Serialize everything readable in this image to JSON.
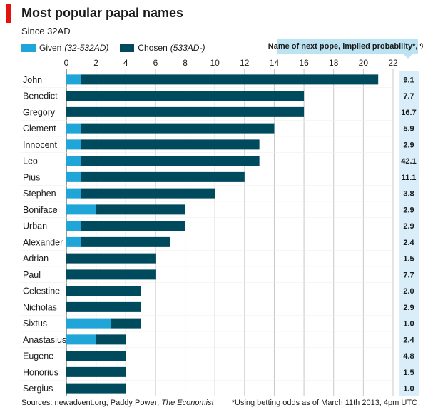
{
  "header": {
    "title": "Most popular papal names",
    "subtitle": "Since 32AD"
  },
  "legend": {
    "given_label": "Given",
    "given_note": "(32-532AD)",
    "chosen_label": "Chosen",
    "chosen_note": "(533AD-)"
  },
  "probability_header": "Name of next pope, implied probability*, %",
  "footer": {
    "source_prefix": "Sources: newadvent.org; Paddy Power;",
    "source_publication": "The Economist",
    "footnote": "*Using betting odds as of March 11th 2013, 4pm UTC"
  },
  "colors": {
    "given": "#1fa5d8",
    "chosen": "#004a5e",
    "probability_bg": "#bde3f3",
    "accent_red": "#e3120b"
  },
  "chart_data": {
    "type": "bar",
    "orientation": "horizontal",
    "stacked": true,
    "title": "Most popular papal names",
    "subtitle": "Since 32AD",
    "xlim": [
      0,
      22
    ],
    "xticks": [
      "0",
      "2",
      "4",
      "6",
      "8",
      "10",
      "12",
      "14",
      "16",
      "18",
      "20",
      "22"
    ],
    "grid": true,
    "legend_position": "top-left",
    "categories": [
      "John",
      "Benedict",
      "Gregory",
      "Clement",
      "Innocent",
      "Leo",
      "Pius",
      "Stephen",
      "Boniface",
      "Urban",
      "Alexander",
      "Adrian",
      "Paul",
      "Celestine",
      "Nicholas",
      "Sixtus",
      "Anastasius",
      "Eugene",
      "Honorius",
      "Sergius"
    ],
    "series": [
      {
        "name": "Given",
        "values": [
          1,
          0,
          0,
          1,
          1,
          1,
          1,
          1,
          2,
          1,
          1,
          0,
          0,
          0,
          0,
          3,
          2,
          0,
          0,
          0
        ]
      },
      {
        "name": "Chosen",
        "values": [
          20,
          16,
          16,
          13,
          12,
          12,
          11,
          9,
          6,
          7,
          6,
          6,
          6,
          5,
          5,
          2,
          2,
          4,
          4,
          4
        ]
      }
    ],
    "probabilities": [
      "9.1",
      "7.7",
      "16.7",
      "5.9",
      "2.9",
      "42.1",
      "11.1",
      "3.8",
      "2.9",
      "2.9",
      "2.4",
      "1.5",
      "7.7",
      "2.0",
      "2.9",
      "1.0",
      "2.4",
      "4.8",
      "1.5",
      "1.0"
    ]
  }
}
